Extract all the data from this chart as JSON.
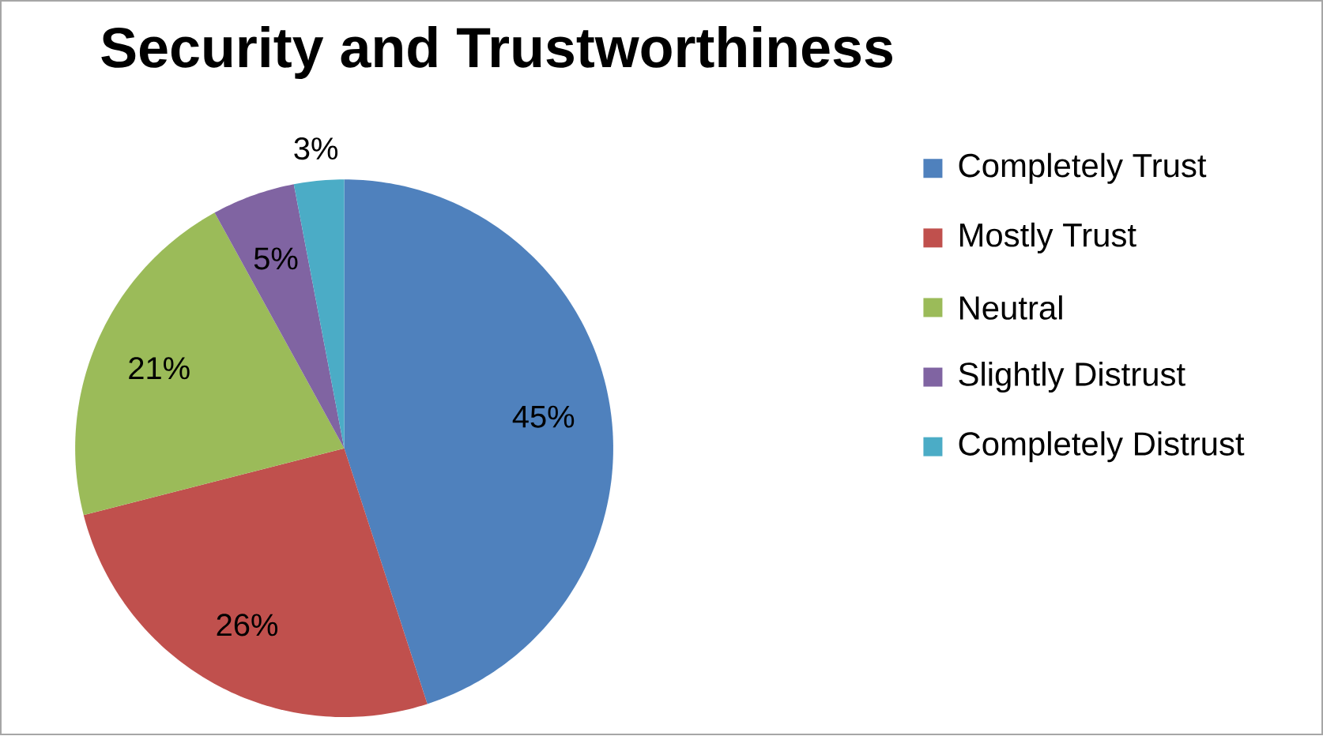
{
  "chart_data": {
    "type": "pie",
    "title": "Security and Trustworthiness",
    "categories": [
      "Completely Trust",
      "Mostly Trust",
      "Neutral",
      "Slightly Distrust",
      "Completely Distrust"
    ],
    "values": [
      45,
      26,
      21,
      5,
      3
    ],
    "value_labels": [
      "45%",
      "26%",
      "21%",
      "5%",
      "3%"
    ],
    "colors": [
      "#4f81bd",
      "#c0504d",
      "#9bbb59",
      "#8064a2",
      "#4bacc6"
    ],
    "legend": "right"
  }
}
